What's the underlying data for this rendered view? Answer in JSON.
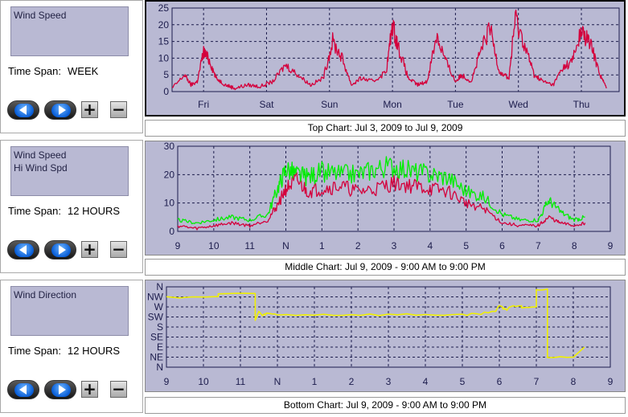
{
  "controls": [
    {
      "id": "top",
      "series_list": [
        "Wind Speed"
      ],
      "time_span_label": "Time Span:",
      "time_span_value": "WEEK"
    },
    {
      "id": "middle",
      "series_list": [
        "Wind Speed",
        "Hi Wind Spd"
      ],
      "time_span_label": "Time Span:",
      "time_span_value": "12 HOURS"
    },
    {
      "id": "bottom",
      "series_list": [
        "Wind Direction"
      ],
      "time_span_label": "Time Span:",
      "time_span_value": "12 HOURS"
    }
  ],
  "buttons": {
    "prev_icon": "left-arrow-icon",
    "next_icon": "right-arrow-icon",
    "zoom_in_label": "+",
    "zoom_out_label": "−"
  },
  "captions": {
    "top": "Top Chart:  Jul 3, 2009  to  Jul 9, 2009",
    "middle": "Middle Chart:  Jul 9, 2009 - 9:00 AM  to  9:00 PM",
    "bottom": "Bottom Chart:  Jul 9, 2009 - 9:00 AM  to  9:00 PM"
  },
  "colors": {
    "plot_bg": "#b9b9d3",
    "wind_speed": "#d4003c",
    "hi_wind_speed": "#00ee00",
    "wind_direction": "#f0f000",
    "grid": "#1c1c4c"
  },
  "chart_data": [
    {
      "type": "line",
      "id": "top",
      "x_unit": "days",
      "xlim": [
        0,
        7.1
      ],
      "x_tick_labels": [
        "Fri",
        "Sat",
        "Sun",
        "Mon",
        "Tue",
        "Wed",
        "Thu"
      ],
      "x_tick_positions": [
        0.5,
        1.5,
        2.5,
        3.5,
        4.5,
        5.5,
        6.5
      ],
      "ylim": [
        0,
        25
      ],
      "y_ticks": [
        0,
        5,
        10,
        15,
        20,
        25
      ],
      "grid": true,
      "series": [
        {
          "color_key": "wind_speed",
          "x": [
            0,
            0.2,
            0.3,
            0.4,
            0.5,
            0.6,
            0.7,
            0.85,
            1.0,
            1.2,
            1.4,
            1.6,
            1.8,
            2.0,
            2.2,
            2.4,
            2.55,
            2.7,
            2.85,
            3.0,
            3.2,
            3.4,
            3.5,
            3.6,
            3.75,
            3.9,
            4.05,
            4.2,
            4.35,
            4.5,
            4.6,
            4.75,
            4.9,
            5.05,
            5.2,
            5.35,
            5.45,
            5.6,
            5.75,
            5.9,
            6.05,
            6.2,
            6.35,
            6.5,
            6.65,
            6.8,
            6.9
          ],
          "y": [
            1,
            5,
            2,
            3,
            12,
            9,
            4,
            2,
            1,
            2,
            1.5,
            3,
            8,
            5,
            2,
            4,
            15,
            10,
            2,
            4,
            3,
            6,
            20,
            13,
            4,
            2,
            3,
            17,
            9,
            3,
            5,
            3,
            12,
            19,
            6,
            4,
            22,
            14,
            5,
            3,
            2,
            7,
            9,
            18,
            14,
            5,
            1
          ]
        }
      ]
    },
    {
      "type": "line",
      "id": "middle",
      "x_unit": "hours",
      "xlim": [
        9,
        21
      ],
      "x_tick_labels": [
        "9",
        "10",
        "11",
        "N",
        "1",
        "2",
        "3",
        "4",
        "5",
        "6",
        "7",
        "8",
        "9"
      ],
      "x_tick_positions": [
        9,
        10,
        11,
        12,
        13,
        14,
        15,
        16,
        17,
        18,
        19,
        20,
        21
      ],
      "ylim": [
        0,
        30
      ],
      "y_ticks": [
        0,
        10,
        20,
        30
      ],
      "grid": true,
      "series": [
        {
          "name": "Wind Speed",
          "color_key": "wind_speed",
          "x": [
            9,
            9.5,
            10,
            10.5,
            11,
            11.5,
            11.8,
            12.0,
            12.3,
            12.6,
            13,
            13.5,
            14,
            14.5,
            15,
            15.5,
            16,
            16.5,
            17,
            17.5,
            18,
            18.5,
            19,
            19.3,
            19.6,
            20,
            20.3
          ],
          "y": [
            2,
            1,
            2,
            3,
            2,
            4,
            10,
            15,
            18,
            14,
            15,
            16,
            14,
            15,
            17,
            16,
            15,
            14,
            10,
            8,
            3,
            2,
            2,
            5,
            3,
            2,
            3
          ]
        },
        {
          "name": "Hi Wind Spd",
          "color_key": "hi_wind_speed",
          "x": [
            9,
            9.5,
            10,
            10.5,
            11,
            11.5,
            11.8,
            12.0,
            12.3,
            12.6,
            13,
            13.5,
            14,
            14.5,
            15,
            15.5,
            16,
            16.5,
            17,
            17.5,
            18,
            18.5,
            19,
            19.3,
            19.6,
            20,
            20.3
          ],
          "y": [
            4,
            3,
            4,
            5,
            4,
            6,
            16,
            22,
            20,
            19,
            21,
            20,
            20,
            22,
            23,
            21,
            20,
            19,
            14,
            12,
            6,
            4,
            4,
            11,
            7,
            4,
            5
          ]
        }
      ]
    },
    {
      "type": "line",
      "id": "bottom",
      "x_unit": "hours",
      "xlim": [
        9,
        21
      ],
      "x_tick_labels": [
        "9",
        "10",
        "11",
        "N",
        "1",
        "2",
        "3",
        "4",
        "5",
        "6",
        "7",
        "8",
        "9"
      ],
      "x_tick_positions": [
        9,
        10,
        11,
        12,
        13,
        14,
        15,
        16,
        17,
        18,
        19,
        20,
        21
      ],
      "y_tick_labels": [
        "N",
        "NE",
        "E",
        "SE",
        "S",
        "SW",
        "W",
        "NW",
        "N"
      ],
      "y_tick_degrees": [
        0,
        45,
        90,
        135,
        180,
        225,
        270,
        315,
        360
      ],
      "ylim": [
        0,
        360
      ],
      "grid": true,
      "series": [
        {
          "name": "Wind Direction",
          "color_key": "wind_direction",
          "x": [
            9,
            10.4,
            10.4,
            11.4,
            11.4,
            11.5,
            11.6,
            11.7,
            12.0,
            13.0,
            14.0,
            15.0,
            16.0,
            17.0,
            17.5,
            17.9,
            18.0,
            18.1,
            18.2,
            18.3,
            18.6,
            18.6,
            19.0,
            19.0,
            19.3,
            19.3,
            20.0,
            20.3
          ],
          "y": [
            315,
            315,
            330,
            330,
            210,
            250,
            230,
            240,
            235,
            235,
            235,
            235,
            235,
            235,
            240,
            250,
            280,
            265,
            255,
            275,
            275,
            270,
            270,
            350,
            350,
            45,
            45,
            90
          ]
        }
      ]
    }
  ]
}
